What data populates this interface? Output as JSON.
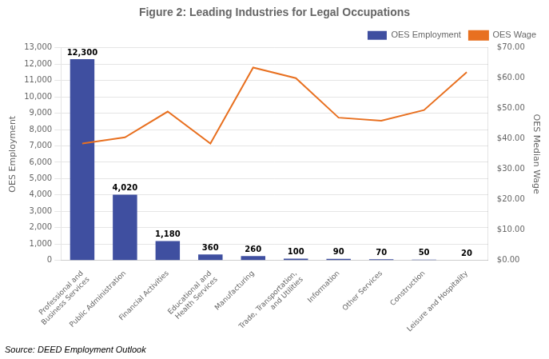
{
  "chart_data": {
    "type": "bar",
    "title": "Figure 2: Leading Industries for Legal Occupations",
    "categories": [
      "Professional and\nBusiness Services",
      "Public Administration",
      "Financial Activities",
      "Educational and\nHealth Services",
      "Manufacturing",
      "Trade, Transportation,\nand Utilities",
      "Information",
      "Other Services",
      "Construction",
      "Leisure and Hospitality"
    ],
    "series": [
      {
        "name": "OES Employment",
        "type": "bar",
        "color": "#3F4FA0",
        "values": [
          12300,
          4020,
          1180,
          360,
          260,
          100,
          90,
          70,
          50,
          20
        ],
        "value_labels": [
          "12,300",
          "4,020",
          "1,180",
          "360",
          "260",
          "100",
          "90",
          "70",
          "50",
          "20"
        ],
        "data_labels": true
      },
      {
        "name": "OES Wage",
        "type": "line",
        "color": "#E87020",
        "axis": "y2",
        "values": [
          38.5,
          40.5,
          49.0,
          38.5,
          63.5,
          60.0,
          47.0,
          46.0,
          49.5,
          62.0
        ]
      }
    ],
    "ylabel": "OES Employment",
    "y2label": "OES Median Wage",
    "ylim": [
      0,
      13000
    ],
    "yticks": [
      0,
      {
        "value": 1000,
        "label": "1,000"
      },
      {
        "value": 2000,
        "label": "2,000"
      },
      {
        "value": 3000,
        "label": "3,000"
      },
      {
        "value": 4000,
        "label": "4,000"
      },
      {
        "value": 5000,
        "label": "5,000"
      },
      {
        "value": 6000,
        "label": "6,000"
      },
      {
        "value": 7000,
        "label": "7,000"
      },
      {
        "value": 8000,
        "label": "8,000"
      },
      {
        "value": 9000,
        "label": "9,000"
      },
      {
        "value": 10000,
        "label": "10,000"
      },
      {
        "value": 11000,
        "label": "11,000"
      },
      {
        "value": 12000,
        "label": "12,000"
      },
      {
        "value": 13000,
        "label": "13,000"
      }
    ],
    "y2lim": [
      0,
      70
    ],
    "y2ticks": [
      {
        "value": 0,
        "label": "$0.00"
      },
      {
        "value": 10,
        "label": "$10.00"
      },
      {
        "value": 20,
        "label": "$20.00"
      },
      {
        "value": 30,
        "label": "$30.00"
      },
      {
        "value": 40,
        "label": "$40.00"
      },
      {
        "value": 50,
        "label": "$50.00"
      },
      {
        "value": 60,
        "label": "$60.00"
      },
      {
        "value": 70,
        "label": "$70.00"
      }
    ],
    "grid": true,
    "legend": "upper right",
    "annotations": [
      "Source: DEED Employment Outlook"
    ]
  }
}
